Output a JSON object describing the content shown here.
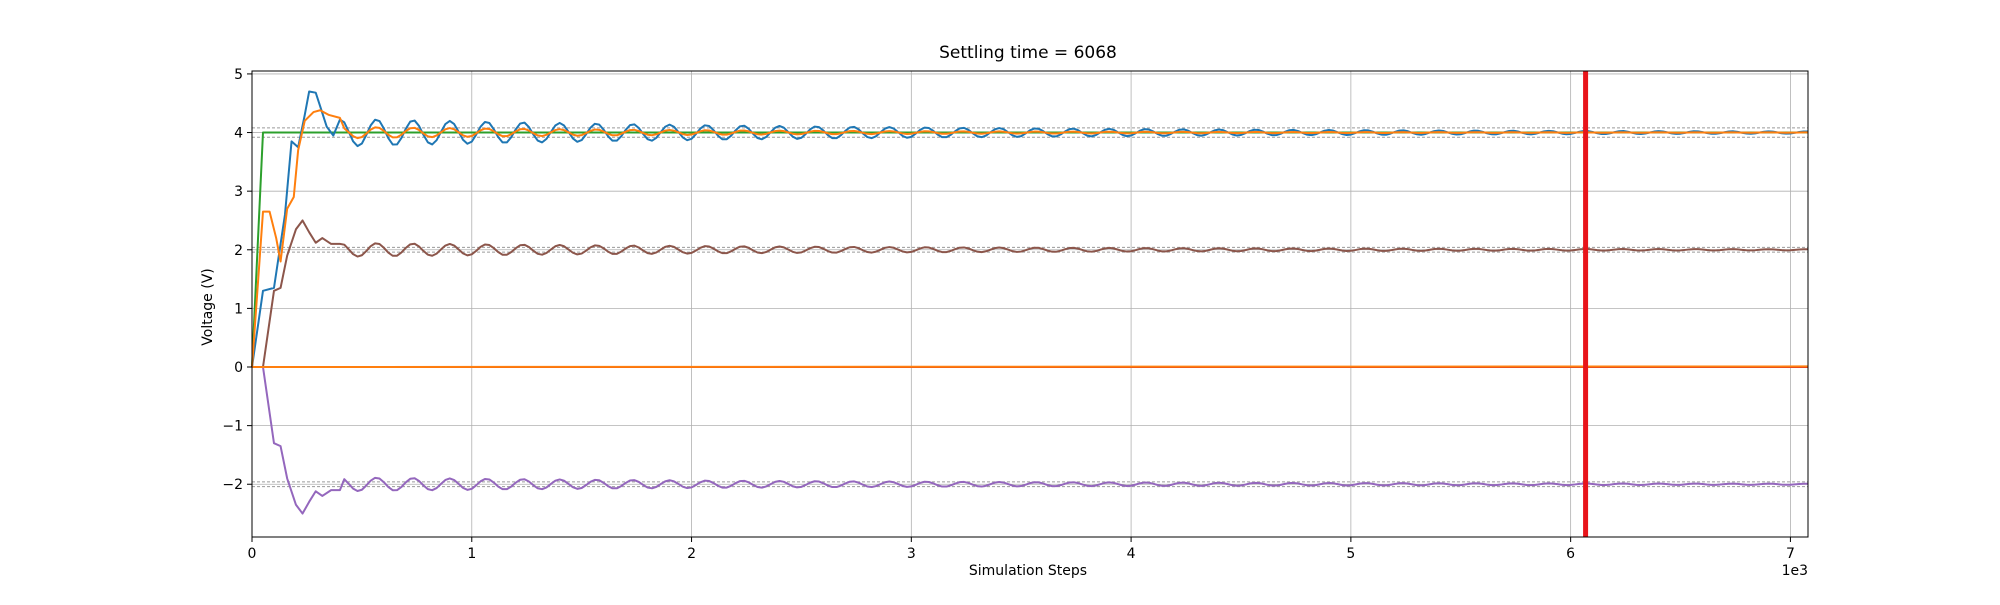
{
  "chart_data": {
    "type": "line",
    "title": "Settling time = 6068",
    "xlabel": "Simulation Steps",
    "ylabel": "Voltage (V)",
    "x_offset_text": "1e3",
    "xlim": [
      0,
      7.08
    ],
    "ylim": [
      -2.9,
      5.05
    ],
    "x_ticks": [
      {
        "value": 0,
        "label": "0"
      },
      {
        "value": 1,
        "label": "1"
      },
      {
        "value": 2,
        "label": "2"
      },
      {
        "value": 3,
        "label": "3"
      },
      {
        "value": 4,
        "label": "4"
      },
      {
        "value": 5,
        "label": "5"
      },
      {
        "value": 6,
        "label": "6"
      },
      {
        "value": 7,
        "label": "7"
      }
    ],
    "y_ticks": [
      {
        "value": -2,
        "label": "−2"
      },
      {
        "value": -1,
        "label": "−1"
      },
      {
        "value": 0,
        "label": "0"
      },
      {
        "value": 1,
        "label": "1"
      },
      {
        "value": 2,
        "label": "2"
      },
      {
        "value": 3,
        "label": "3"
      },
      {
        "value": 4,
        "label": "4"
      },
      {
        "value": 5,
        "label": "5"
      }
    ],
    "grid": true,
    "settling_time_marker": {
      "x": 6.068,
      "color": "#e8141a"
    },
    "tolerance_bands": [
      {
        "upper": 4.08,
        "lower": 3.92,
        "color": "#9a9a9a"
      },
      {
        "upper": 2.04,
        "lower": 1.96,
        "color": "#9a9a9a"
      },
      {
        "upper": -1.96,
        "lower": -2.04,
        "color": "#9a9a9a"
      }
    ],
    "series": [
      {
        "color": "#2ca02c",
        "kind": "step",
        "points": [
          [
            0,
            0
          ],
          [
            0.05,
            4.0
          ],
          [
            7.08,
            4.0
          ]
        ]
      },
      {
        "color": "#1f77b4",
        "kind": "oscillation",
        "x0": 0.4,
        "settle_value": 4.0,
        "amplitude": 0.24,
        "decay": 0.38,
        "period": 0.1667,
        "transient": [
          [
            0,
            0
          ],
          [
            0.05,
            1.3
          ],
          [
            0.1,
            1.35
          ],
          [
            0.15,
            2.6
          ],
          [
            0.18,
            3.85
          ],
          [
            0.21,
            3.75
          ],
          [
            0.24,
            4.3
          ],
          [
            0.26,
            4.7
          ],
          [
            0.29,
            4.68
          ],
          [
            0.31,
            4.45
          ],
          [
            0.34,
            4.1
          ],
          [
            0.37,
            3.95
          ],
          [
            0.4,
            4.22
          ]
        ]
      },
      {
        "color": "#ff7f0e",
        "kind": "oscillation",
        "x0": 0.4,
        "settle_value": 4.0,
        "amplitude": 0.1,
        "decay": 0.55,
        "period": 0.1667,
        "transient": [
          [
            0,
            0
          ],
          [
            0.05,
            2.65
          ],
          [
            0.08,
            2.65
          ],
          [
            0.11,
            2.2
          ],
          [
            0.13,
            1.8
          ],
          [
            0.16,
            2.7
          ],
          [
            0.19,
            2.9
          ],
          [
            0.21,
            3.7
          ],
          [
            0.24,
            4.2
          ],
          [
            0.28,
            4.35
          ],
          [
            0.31,
            4.38
          ],
          [
            0.35,
            4.3
          ],
          [
            0.4,
            4.25
          ]
        ]
      },
      {
        "color": "#8c564b",
        "kind": "oscillation",
        "x0": 0.4,
        "settle_value": 2.0,
        "amplitude": 0.12,
        "decay": 0.38,
        "period": 0.1667,
        "transient": [
          [
            0,
            0
          ],
          [
            0.05,
            0.0
          ],
          [
            0.1,
            1.3
          ],
          [
            0.13,
            1.35
          ],
          [
            0.16,
            1.9
          ],
          [
            0.2,
            2.35
          ],
          [
            0.23,
            2.5
          ],
          [
            0.26,
            2.3
          ],
          [
            0.29,
            2.12
          ],
          [
            0.32,
            2.2
          ],
          [
            0.36,
            2.1
          ],
          [
            0.4,
            2.1
          ]
        ]
      },
      {
        "color": "#9467bd",
        "kind": "oscillation",
        "x0": 0.4,
        "settle_value": -2.0,
        "amplitude": 0.12,
        "decay": 0.38,
        "period": 0.1667,
        "transient": [
          [
            0,
            0
          ],
          [
            0.05,
            0.0
          ],
          [
            0.1,
            -1.3
          ],
          [
            0.13,
            -1.35
          ],
          [
            0.16,
            -1.9
          ],
          [
            0.2,
            -2.35
          ],
          [
            0.23,
            -2.5
          ],
          [
            0.26,
            -2.3
          ],
          [
            0.29,
            -2.12
          ],
          [
            0.32,
            -2.2
          ],
          [
            0.36,
            -2.1
          ],
          [
            0.4,
            -2.1
          ]
        ]
      },
      {
        "color": "#d62728",
        "kind": "flat",
        "points": [
          [
            0,
            0
          ],
          [
            7.08,
            0
          ]
        ]
      },
      {
        "color": "#ff7f0e",
        "kind": "flat",
        "points": [
          [
            0,
            0
          ],
          [
            7.08,
            0.01
          ]
        ]
      }
    ]
  }
}
